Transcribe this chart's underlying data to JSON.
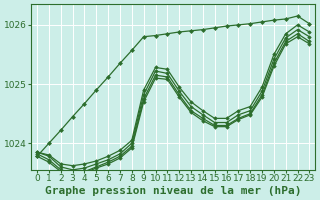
{
  "title": "Graphe pression niveau de la mer (hPa)",
  "bg_color": "#cceee8",
  "grid_color": "#ffffff",
  "line_color": "#2d6e2d",
  "marker_color": "#2d6e2d",
  "xlim": [
    -0.5,
    23.5
  ],
  "ylim": [
    1023.55,
    1026.35
  ],
  "yticks": [
    1024,
    1025,
    1026
  ],
  "xticks": [
    0,
    1,
    2,
    3,
    4,
    5,
    6,
    7,
    8,
    9,
    10,
    11,
    12,
    13,
    14,
    15,
    16,
    17,
    18,
    19,
    20,
    21,
    22,
    23
  ],
  "lines": [
    [
      1023.85,
      1023.8,
      1023.65,
      1023.62,
      1023.65,
      1023.7,
      1023.78,
      1023.88,
      1024.05,
      1024.9,
      1025.28,
      1025.25,
      1024.95,
      1024.7,
      1024.55,
      1024.42,
      1024.42,
      1024.55,
      1024.62,
      1024.95,
      1025.5,
      1025.85,
      1026.0,
      1025.88
    ],
    [
      1023.85,
      1023.78,
      1023.6,
      1023.55,
      1023.58,
      1023.65,
      1023.72,
      1023.82,
      1024.0,
      1024.82,
      1025.22,
      1025.18,
      1024.88,
      1024.62,
      1024.48,
      1024.35,
      1024.35,
      1024.48,
      1024.55,
      1024.88,
      1025.42,
      1025.78,
      1025.92,
      1025.8
    ],
    [
      1023.82,
      1023.72,
      1023.55,
      1023.5,
      1023.52,
      1023.6,
      1023.68,
      1023.78,
      1023.95,
      1024.75,
      1025.15,
      1025.12,
      1024.82,
      1024.55,
      1024.42,
      1024.3,
      1024.3,
      1024.42,
      1024.5,
      1024.82,
      1025.35,
      1025.72,
      1025.85,
      1025.72
    ],
    [
      1023.78,
      1023.68,
      1023.52,
      1023.48,
      1023.5,
      1023.58,
      1023.65,
      1023.75,
      1023.92,
      1024.7,
      1025.1,
      1025.08,
      1024.78,
      1024.52,
      1024.38,
      1024.28,
      1024.28,
      1024.4,
      1024.48,
      1024.78,
      1025.3,
      1025.68,
      1025.8,
      1025.68
    ]
  ],
  "straight_line": [
    1023.78,
    1024.0,
    1024.22,
    1024.45,
    1024.67,
    1024.9,
    1025.12,
    1025.35,
    1025.57,
    1025.8,
    1025.82,
    1025.85,
    1025.88,
    1025.9,
    1025.92,
    1025.95,
    1025.98,
    1026.0,
    1026.02,
    1026.05,
    1026.08,
    1026.1,
    1026.15,
    1026.02
  ],
  "title_fontsize": 8,
  "tick_fontsize": 6.5
}
